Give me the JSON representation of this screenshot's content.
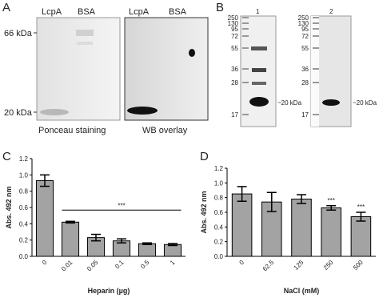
{
  "panels": {
    "A": {
      "label": "A",
      "lane_labels": [
        "LcpA",
        "BSA",
        "LcpA",
        "BSA"
      ],
      "markers": [
        "66 kDa",
        "20 kDa"
      ],
      "captions": [
        "Ponceau staining",
        "WB overlay"
      ]
    },
    "B": {
      "label": "B",
      "lanes": [
        "1",
        "2"
      ],
      "markers": [
        "250",
        "130",
        "95",
        "72",
        "55",
        "36",
        "28",
        "17"
      ],
      "band_labels": [
        "~20 kDa",
        "~20 kDa"
      ]
    }
  },
  "chart_data": [
    {
      "type": "bar",
      "panel_label": "C",
      "y_label": "Abs. 492 nm",
      "x_label": "Heparin (µg)",
      "categories": [
        "0",
        "0.01",
        "0.05",
        "0.1",
        "0.5",
        "1"
      ],
      "series": [
        {
          "color": "#a3a3a3",
          "values": [
            0.93,
            0.42,
            0.23,
            0.19,
            0.155,
            0.145
          ],
          "errors": [
            0.07,
            0.01,
            0.04,
            0.025,
            0.01,
            0.012
          ]
        }
      ],
      "ylim": [
        0,
        1.2
      ],
      "yticks": [
        {
          "value": 0,
          "label": "0.0"
        },
        {
          "value": 0.2,
          "label": "0.2"
        },
        {
          "value": 0.4,
          "label": "0.4"
        },
        {
          "value": 0.6,
          "label": "0.6"
        },
        {
          "value": 0.8,
          "label": "0.8"
        },
        {
          "value": 1,
          "label": "1.0"
        },
        {
          "value": 1.2,
          "label": "1.2"
        }
      ],
      "significance": "***"
    },
    {
      "type": "bar",
      "panel_label": "D",
      "y_label": "Abs. 492 nm",
      "x_label": "NaCl (mM)",
      "categories": [
        "0",
        "62.5",
        "125",
        "250",
        "500"
      ],
      "series": [
        {
          "color": "#a3a3a3",
          "values": [
            0.85,
            0.74,
            0.78,
            0.66,
            0.54
          ],
          "errors": [
            0.1,
            0.13,
            0.06,
            0.03,
            0.06
          ]
        }
      ],
      "ylim": [
        0,
        1.2
      ],
      "yticks": [
        {
          "value": 0,
          "label": "0.0"
        },
        {
          "value": 0.2,
          "label": "0.2"
        },
        {
          "value": 0.4,
          "label": "0.4"
        },
        {
          "value": 0.6,
          "label": "0.6"
        },
        {
          "value": 0.8,
          "label": "0.8"
        },
        {
          "value": 1,
          "label": "1.0"
        },
        {
          "value": 1.2,
          "label": "1.2"
        }
      ],
      "significance_per_bar": [
        null,
        null,
        null,
        "***",
        "***"
      ]
    }
  ]
}
